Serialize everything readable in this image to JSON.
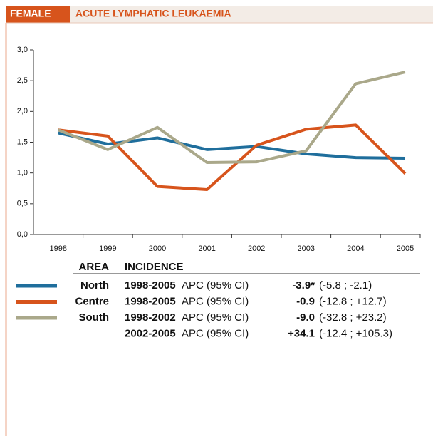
{
  "chart_data": {
    "type": "line",
    "sex": "FEMALE",
    "title": "ACUTE LYMPHATIC LEUKAEMIA",
    "categories": [
      "1998",
      "1999",
      "2000",
      "2001",
      "2002",
      "2003",
      "2004",
      "2005"
    ],
    "ylim": [
      0,
      3
    ],
    "yticks": [
      {
        "value": 0,
        "label": "0,0"
      },
      {
        "value": 0.5,
        "label": "0,5"
      },
      {
        "value": 1,
        "label": "1,0"
      },
      {
        "value": 1.5,
        "label": "1,5"
      },
      {
        "value": 2,
        "label": "2,0"
      },
      {
        "value": 2.5,
        "label": "2,5"
      },
      {
        "value": 3,
        "label": "3,0"
      }
    ],
    "grid": false,
    "series": [
      {
        "name": "North",
        "color": "#1f6e9c",
        "values": [
          1.65,
          1.47,
          1.57,
          1.38,
          1.43,
          1.31,
          1.25,
          1.24
        ]
      },
      {
        "name": "Centre",
        "color": "#d7541c",
        "values": [
          1.7,
          1.6,
          0.78,
          0.73,
          1.45,
          1.71,
          1.78,
          0.99
        ]
      },
      {
        "name": "South",
        "color": "#aaa88a",
        "values": [
          1.7,
          1.38,
          1.74,
          1.17,
          1.18,
          1.36,
          2.45,
          2.64
        ]
      }
    ],
    "legend_table": {
      "headers": [
        "AREA",
        "INCIDENCE"
      ],
      "rows": [
        {
          "period": "1998-2005",
          "measure": "APC (95% CI)",
          "value": "-3.9*",
          "ci": "(-5.8 ; -2.1)"
        },
        {
          "period": "1998-2005",
          "measure": "APC (95% CI)",
          "value": "-0.9",
          "ci": "(-12.8 ; +12.7)"
        },
        {
          "period": "1998-2002",
          "measure": "APC (95% CI)",
          "value": "-9.0",
          "ci": "(-32.8 ; +23.2)"
        },
        {
          "period": "2002-2005",
          "measure": "APC (95% CI)",
          "value": "+34.1",
          "ci": "(-12.4 ; +105.3)"
        }
      ]
    }
  }
}
